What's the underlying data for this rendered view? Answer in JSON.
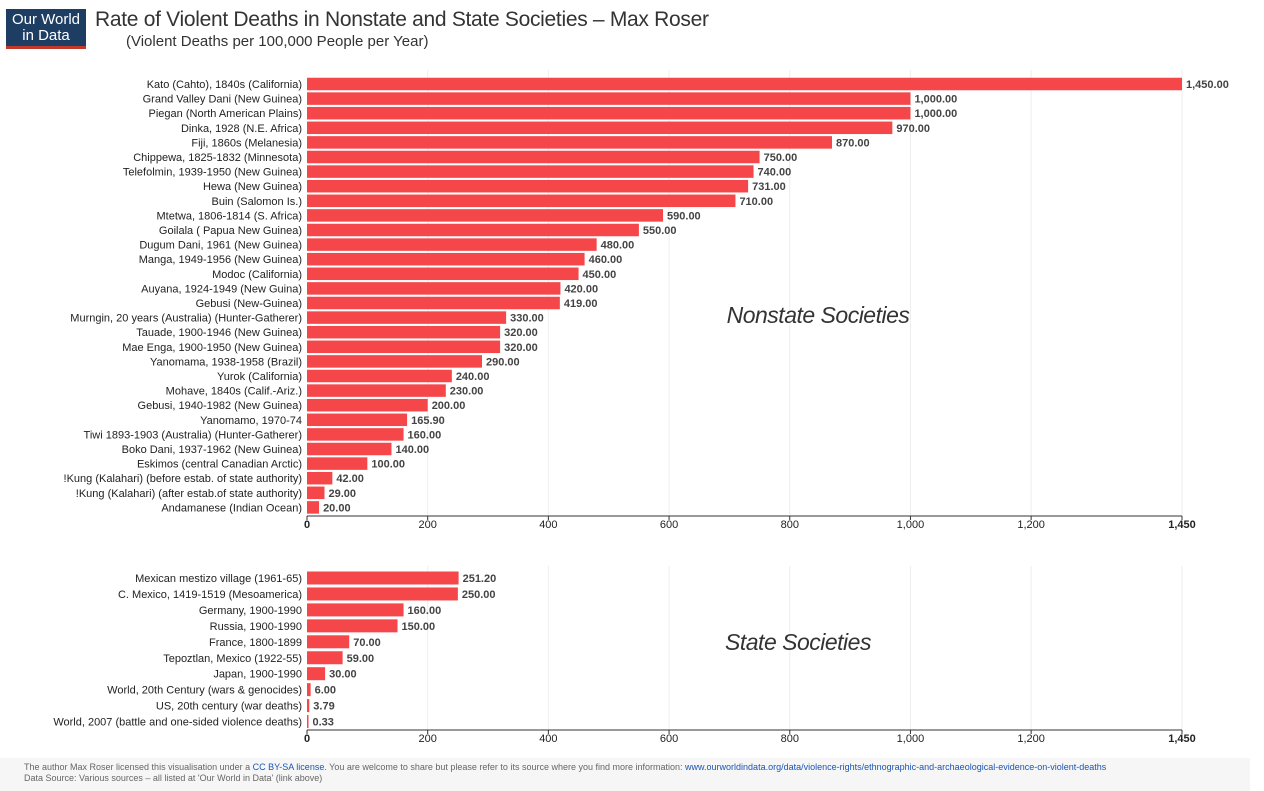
{
  "logo": {
    "line1": "Our World",
    "line2": "in Data"
  },
  "header": {
    "title": "Rate of Violent Deaths in Nonstate and State Societies – Max Roser",
    "subtitle": "(Violent Deaths per 100,000 People per Year)"
  },
  "footer": {
    "line1_a": "The author Max Roser licensed this visualisation under a ",
    "license": "CC BY-SA license",
    "line1_b": ". You are welcome to share but please refer to its source where you find more information: ",
    "url": "www.ourworldindata.org/data/violence-rights/ethnographic-and-archaeological-evidence-on-violent-deaths",
    "line2": "Data Source: Various sources – all listed at 'Our World in Data' (link above)"
  },
  "colors": {
    "bar": "#f5464a",
    "grid": "#eeeeee",
    "axis": "#333333"
  },
  "chart_data": [
    {
      "type": "bar",
      "orientation": "horizontal",
      "annotation": "Nonstate Societies",
      "xlim": [
        0,
        1450
      ],
      "xticks": [
        "0",
        "200",
        "400",
        "600",
        "800",
        "1,000",
        "1,200",
        "1,450"
      ],
      "tick_values": [
        0,
        200,
        400,
        600,
        800,
        1000,
        1200,
        1450
      ],
      "categories": [
        "Kato (Cahto), 1840s (California)",
        "Grand Valley Dani (New Guinea)",
        "Piegan (North American Plains)",
        "Dinka, 1928 (N.E. Africa)",
        "Fiji, 1860s (Melanesia)",
        "Chippewa, 1825-1832 (Minnesota)",
        "Telefolmin, 1939-1950 (New Guinea)",
        "Hewa (New Guinea)",
        "Buin (Salomon Is.)",
        "Mtetwa, 1806-1814 (S. Africa)",
        "Goilala ( Papua New Guinea)",
        "Dugum Dani, 1961 (New Guinea)",
        "Manga, 1949-1956 (New Guinea)",
        "Modoc (California)",
        "Auyana, 1924-1949 (New Guina)",
        "Gebusi (New-Guinea)",
        "Murngin, 20 years (Australia) (Hunter-Gatherer)",
        "Tauade, 1900-1946 (New Guinea)",
        "Mae Enga, 1900-1950 (New Guinea)",
        "Yanomama, 1938-1958 (Brazil)",
        "Yurok (California)",
        "Mohave, 1840s (Calif.-Ariz.)",
        "Gebusi, 1940-1982 (New Guinea)",
        "Yanomamo, 1970-74",
        "Tiwi 1893-1903 (Australia) (Hunter-Gatherer)",
        "Boko Dani, 1937-1962 (New Guinea)",
        "Eskimos (central Canadian Arctic)",
        "!Kung (Kalahari) (before estab. of state authority)",
        "!Kung (Kalahari) (after estab.of state authority)",
        "Andamanese (Indian Ocean)"
      ],
      "values": [
        1450,
        1000,
        1000,
        970,
        870,
        750,
        740,
        731,
        710,
        590,
        550,
        480,
        460,
        450,
        420,
        419,
        330,
        320,
        320,
        290,
        240,
        230,
        200,
        165.9,
        160,
        140,
        100,
        42,
        29,
        20
      ],
      "value_labels": [
        "1,450.00",
        "1,000.00",
        "1,000.00",
        "970.00",
        "870.00",
        "750.00",
        "740.00",
        "731.00",
        "710.00",
        "590.00",
        "550.00",
        "480.00",
        "460.00",
        "450.00",
        "420.00",
        "419.00",
        "330.00",
        "320.00",
        "320.00",
        "290.00",
        "240.00",
        "230.00",
        "200.00",
        "165.90",
        "160.00",
        "140.00",
        "100.00",
        "42.00",
        "29.00",
        "20.00"
      ]
    },
    {
      "type": "bar",
      "orientation": "horizontal",
      "annotation": "State Societies",
      "xlim": [
        0,
        1450
      ],
      "xticks": [
        "0",
        "200",
        "400",
        "600",
        "800",
        "1,000",
        "1,200",
        "1,450"
      ],
      "tick_values": [
        0,
        200,
        400,
        600,
        800,
        1000,
        1200,
        1450
      ],
      "categories": [
        "Mexican mestizo village (1961-65)",
        "C. Mexico, 1419-1519 (Mesoamerica)",
        "Germany, 1900-1990",
        "Russia, 1900-1990",
        "France, 1800-1899",
        "Tepoztlan, Mexico (1922-55)",
        "Japan, 1900-1990",
        "World, 20th Century (wars & genocides)",
        "US, 20th century (war deaths)",
        "World, 2007 (battle and one-sided violence deaths)"
      ],
      "values": [
        251.2,
        250,
        160,
        150,
        70,
        59,
        30,
        6,
        3.79,
        0.33
      ],
      "value_labels": [
        "251.20",
        "250.00",
        "160.00",
        "150.00",
        "70.00",
        "59.00",
        "30.00",
        "6.00",
        "3.79",
        "0.33"
      ]
    }
  ]
}
